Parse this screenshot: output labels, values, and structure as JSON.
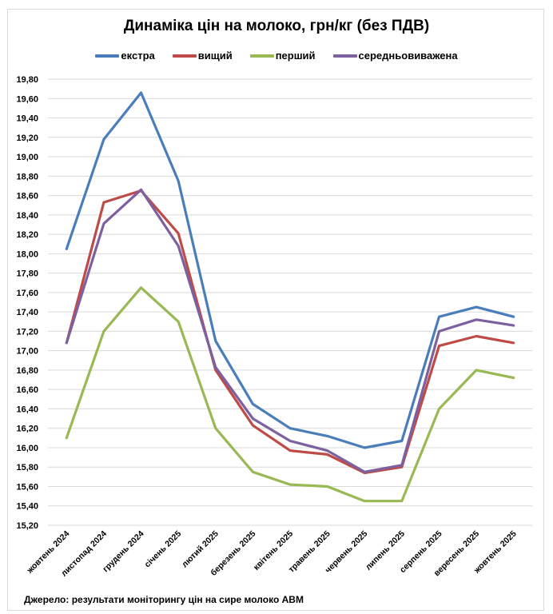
{
  "chart_data": {
    "type": "line",
    "title": "Динаміка цін на молоко, грн/кг (без ПДВ)",
    "xlabel": "",
    "ylabel": "",
    "ylim": [
      15.2,
      19.8
    ],
    "ytick_step": 0.2,
    "yticks": [
      "15,20",
      "15,40",
      "15,60",
      "15,80",
      "16,00",
      "16,20",
      "16,40",
      "16,60",
      "16,80",
      "17,00",
      "17,20",
      "17,40",
      "17,60",
      "17,80",
      "18,00",
      "18,20",
      "18,40",
      "18,60",
      "18,80",
      "19,00",
      "19,20",
      "19,40",
      "19,60",
      "19,80"
    ],
    "grid": true,
    "legend_position": "top",
    "categories": [
      "жовтень 2024",
      "листопад 2024",
      "грудень 2024",
      "січень 2025",
      "лютий 2025",
      "березень 2025",
      "квітень 2025",
      "травень 2025",
      "червень 2025",
      "липень 2025",
      "серпень 2025",
      "вересень 2025",
      "жовтень 2025"
    ],
    "series": [
      {
        "name": "екстра",
        "color": "#4a7ebb",
        "values": [
          18.05,
          19.18,
          19.66,
          18.75,
          17.1,
          16.45,
          16.2,
          16.12,
          16.0,
          16.07,
          17.35,
          17.45,
          17.35
        ]
      },
      {
        "name": "вищий",
        "color": "#be4b48",
        "values": [
          17.08,
          18.53,
          18.65,
          18.21,
          16.8,
          16.23,
          15.97,
          15.93,
          15.74,
          15.8,
          17.05,
          17.15,
          17.08
        ]
      },
      {
        "name": "перший",
        "color": "#98b954",
        "values": [
          16.1,
          17.2,
          17.65,
          17.3,
          16.2,
          15.75,
          15.62,
          15.6,
          15.45,
          15.45,
          16.4,
          16.8,
          16.72
        ]
      },
      {
        "name": "середньовиважена",
        "color": "#7d60a0",
        "values": [
          17.08,
          18.31,
          18.66,
          18.08,
          16.83,
          16.3,
          16.07,
          15.97,
          15.75,
          15.82,
          17.2,
          17.32,
          17.26
        ]
      }
    ]
  },
  "source": "Джерело: результати моніторингу цін на сире молоко АВМ"
}
